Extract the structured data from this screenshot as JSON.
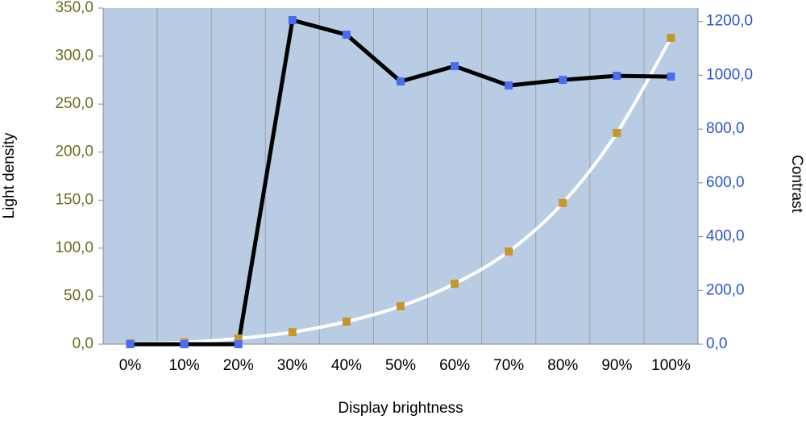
{
  "chart_data": {
    "type": "line",
    "x_label": "Display brightness",
    "y_label": "Light density",
    "y2_label": "Contrast",
    "categories": [
      "0%",
      "10%",
      "20%",
      "30%",
      "40%",
      "50%",
      "60%",
      "70%",
      "80%",
      "90%",
      "100%"
    ],
    "series": [
      {
        "name": "Light density",
        "color": "#ffffff",
        "marker_color": "#c8962a",
        "values": [
          1,
          2,
          6,
          12.5,
          23.5,
          39.5,
          63,
          96.5,
          147,
          220,
          319
        ]
      },
      {
        "name": "Contrast",
        "color": "#000000",
        "marker_color": "#4a6cf0",
        "axis": "y2",
        "values": [
          0,
          0,
          0,
          1205,
          1151,
          977,
          1034,
          962,
          983,
          998,
          995
        ]
      }
    ],
    "ylim": [
      0,
      350
    ],
    "yticks": [
      {
        "value": 0,
        "label": "0,0"
      },
      {
        "value": 50,
        "label": "50,0"
      },
      {
        "value": 100,
        "label": "100,0"
      },
      {
        "value": 150,
        "label": "150,0"
      },
      {
        "value": 200,
        "label": "200,0"
      },
      {
        "value": 250,
        "label": "250,0"
      },
      {
        "value": 300,
        "label": "300,0"
      },
      {
        "value": 350,
        "label": "350,0"
      }
    ],
    "y2lim": [
      0,
      1250
    ],
    "y2ticks": [
      {
        "value": 0,
        "label": "0,0"
      },
      {
        "value": 200,
        "label": "200,0"
      },
      {
        "value": 400,
        "label": "400,0"
      },
      {
        "value": 600,
        "label": "600,0"
      },
      {
        "value": 800,
        "label": "800,0"
      },
      {
        "value": 1000,
        "label": "1000,0"
      },
      {
        "value": 1200,
        "label": "1200,0"
      }
    ],
    "y_tick_color": "#6b6b1e",
    "y2_tick_color": "#2a55d0",
    "background": "#b8cce4",
    "grid": true
  }
}
